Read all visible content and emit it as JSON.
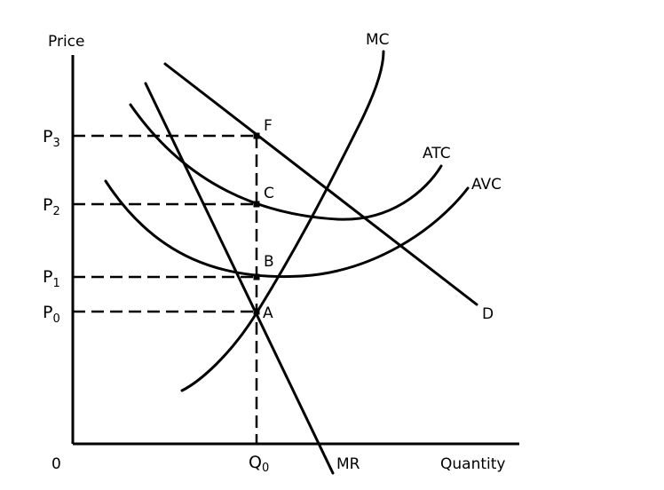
{
  "axes": {
    "y_label": "Price",
    "x_label": "Quantity",
    "origin_label": "0"
  },
  "price_levels": [
    {
      "base": "P",
      "sub": "3"
    },
    {
      "base": "P",
      "sub": "2"
    },
    {
      "base": "P",
      "sub": "1"
    },
    {
      "base": "P",
      "sub": "0"
    }
  ],
  "quantity_level": {
    "base": "Q",
    "sub": "0"
  },
  "curves": {
    "mc": "MC",
    "atc": "ATC",
    "avc": "AVC",
    "demand": "D",
    "mr": "MR"
  },
  "points": [
    "F",
    "C",
    "B",
    "A"
  ]
}
